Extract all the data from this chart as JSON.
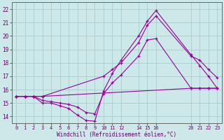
{
  "xlabel": "Windchill (Refroidissement éolien,°C)",
  "bg_color": "#cce8e8",
  "grid_color": "#aacccc",
  "line_color": "#990099",
  "xlim": [
    -0.5,
    23.5
  ],
  "ylim": [
    13.5,
    22.5
  ],
  "xticks": [
    0,
    1,
    2,
    3,
    4,
    5,
    6,
    7,
    8,
    9,
    10,
    11,
    12,
    14,
    15,
    16,
    20,
    21,
    22,
    23
  ],
  "yticks": [
    14,
    15,
    16,
    17,
    18,
    19,
    20,
    21,
    22
  ],
  "lines": [
    {
      "x": [
        0,
        1,
        2,
        3,
        4,
        5,
        6,
        7,
        8,
        9,
        10,
        11,
        12,
        14,
        15,
        16,
        20,
        21,
        22,
        23
      ],
      "y": [
        15.5,
        15.5,
        15.5,
        15.0,
        15.0,
        14.8,
        14.6,
        14.1,
        13.7,
        13.65,
        15.9,
        17.2,
        18.2,
        20.0,
        21.1,
        21.9,
        18.6,
        17.8,
        17.0,
        16.1
      ]
    },
    {
      "x": [
        0,
        1,
        2,
        3,
        4,
        5,
        6,
        7,
        8,
        9,
        10,
        11,
        12,
        14,
        15,
        16,
        20,
        21,
        22,
        23
      ],
      "y": [
        15.5,
        15.5,
        15.5,
        15.2,
        15.1,
        15.0,
        14.9,
        14.7,
        14.3,
        14.2,
        15.7,
        16.5,
        17.1,
        18.5,
        19.7,
        19.8,
        16.1,
        16.1,
        16.1,
        16.1
      ]
    },
    {
      "x": [
        0,
        1,
        2,
        3,
        10,
        11,
        12,
        14,
        15,
        16,
        20,
        21,
        22,
        23
      ],
      "y": [
        15.5,
        15.5,
        15.5,
        15.5,
        17.0,
        17.5,
        18.0,
        19.5,
        20.8,
        21.5,
        18.5,
        18.2,
        17.5,
        16.9
      ]
    },
    {
      "x": [
        0,
        1,
        2,
        3,
        20,
        21,
        22,
        23
      ],
      "y": [
        15.5,
        15.5,
        15.5,
        15.5,
        16.1,
        16.1,
        16.1,
        16.1
      ]
    }
  ]
}
